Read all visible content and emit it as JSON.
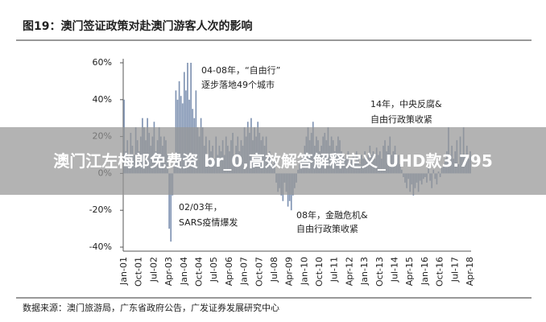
{
  "chart_data": {
    "type": "bar",
    "title": "图19：澳门签证政策对赴澳门游客人次的影响",
    "source": "数据来源：澳门旅游局，广东省政府公告，广发证券发展研究中心",
    "annotations": [
      "04-08年，“自由行”",
      "逐步落地49个城市",
      "14年，中央反腐&",
      "自由行政策收紧",
      "02/03年，",
      "SARS疫情爆发",
      "08年，金融危机&",
      "自由行政策收紧"
    ],
    "color": "#7f93b2",
    "ylim": [
      -40,
      60
    ],
    "yticks": [
      {
        "value": -40,
        "label": "-40%"
      },
      {
        "value": -20,
        "label": "-20%"
      },
      {
        "value": 0,
        "label": "0%"
      },
      {
        "value": 20,
        "label": "20%"
      },
      {
        "value": 40,
        "label": "40%"
      },
      {
        "value": 60,
        "label": "60%"
      }
    ],
    "categories": [
      "Jan-01",
      null,
      null,
      null,
      null,
      null,
      null,
      null,
      null,
      "Oct-01",
      null,
      null,
      null,
      null,
      null,
      null,
      null,
      null,
      "Jul-02",
      null,
      null,
      null,
      null,
      null,
      null,
      null,
      null,
      "Apr-03",
      null,
      null,
      null,
      null,
      null,
      null,
      null,
      null,
      "Jan-04",
      null,
      null,
      null,
      null,
      null,
      null,
      null,
      null,
      "Oct-04",
      null,
      null,
      null,
      null,
      null,
      null,
      null,
      null,
      "Jul-05",
      null,
      null,
      null,
      null,
      null,
      null,
      null,
      null,
      "Apr-06",
      null,
      null,
      null,
      null,
      null,
      null,
      null,
      null,
      "Jan-07",
      null,
      null,
      null,
      null,
      null,
      null,
      null,
      null,
      "Oct-07",
      null,
      null,
      null,
      null,
      null,
      null,
      null,
      null,
      "Jul-08",
      null,
      null,
      null,
      null,
      null,
      null,
      null,
      null,
      "Apr-09",
      null,
      null,
      null,
      null,
      null,
      null,
      null,
      null,
      "Jan-10",
      null,
      null,
      null,
      null,
      null,
      null,
      null,
      null,
      "Oct-10",
      null,
      null,
      null,
      null,
      null,
      null,
      null,
      null,
      "Jul-11",
      null,
      null,
      null,
      null,
      null,
      null,
      null,
      null,
      "Apr-12",
      null,
      null,
      null,
      null,
      null,
      null,
      null,
      null,
      "Jan-13",
      null,
      null,
      null,
      null,
      null,
      null,
      null,
      null,
      "Oct-13",
      null,
      null,
      null,
      null,
      null,
      null,
      null,
      null,
      "Jul-14",
      null,
      null,
      null,
      null,
      null,
      null,
      null,
      null,
      "Apr-15",
      null,
      null,
      null,
      null,
      null,
      null,
      null,
      null,
      "Jan-16",
      null,
      null,
      null,
      null,
      null,
      null,
      null,
      null,
      "Oct-16",
      null,
      null,
      null,
      null,
      null,
      null,
      null,
      null,
      "Jul-17",
      null,
      null,
      null,
      null,
      null,
      null,
      null,
      null,
      "Apr-18"
    ],
    "values": [
      40,
      12,
      18,
      8,
      22,
      15,
      10,
      25,
      18,
      12,
      20,
      30,
      25,
      18,
      30,
      22,
      15,
      20,
      28,
      12,
      18,
      25,
      20,
      15,
      20,
      18,
      10,
      -30,
      -37,
      -12,
      5,
      45,
      40,
      50,
      42,
      38,
      55,
      45,
      60,
      40,
      60,
      35,
      30,
      45,
      25,
      20,
      30,
      25,
      15,
      20,
      10,
      18,
      12,
      15,
      8,
      20,
      10,
      15,
      12,
      18,
      10,
      20,
      15,
      12,
      18,
      22,
      10,
      15,
      20,
      12,
      18,
      15,
      25,
      20,
      28,
      22,
      30,
      18,
      25,
      20,
      28,
      22,
      18,
      20,
      15,
      20,
      10,
      12,
      8,
      5,
      10,
      -5,
      -10,
      -8,
      -12,
      -15,
      -5,
      -10,
      -18,
      -15,
      -20,
      -12,
      -8,
      -5,
      2,
      5,
      8,
      10,
      15,
      20,
      25,
      18,
      22,
      28,
      15,
      20,
      18,
      12,
      15,
      20,
      22,
      18,
      25,
      15,
      20,
      18,
      12,
      15,
      20,
      18,
      12,
      10,
      8,
      10,
      12,
      5,
      8,
      10,
      6,
      12,
      8,
      5,
      10,
      8,
      12,
      8,
      10,
      15,
      10,
      12,
      8,
      14,
      10,
      12,
      8,
      15,
      18,
      12,
      15,
      20,
      10,
      12,
      15,
      8,
      10,
      5,
      2,
      -2,
      -5,
      -8,
      -3,
      -10,
      -6,
      -12,
      -8,
      -5,
      -10,
      -4,
      -6,
      -3,
      -2,
      -5,
      3,
      -4,
      -8,
      2,
      -3,
      -6,
      1,
      -2,
      3,
      5,
      8,
      12,
      25,
      10,
      15,
      8,
      12,
      18,
      5,
      20,
      10,
      25,
      10,
      15,
      8,
      12
    ]
  },
  "overlay": "澳门江左梅郎免费资 br_0,高效解答解释定义_UHD款3.795"
}
